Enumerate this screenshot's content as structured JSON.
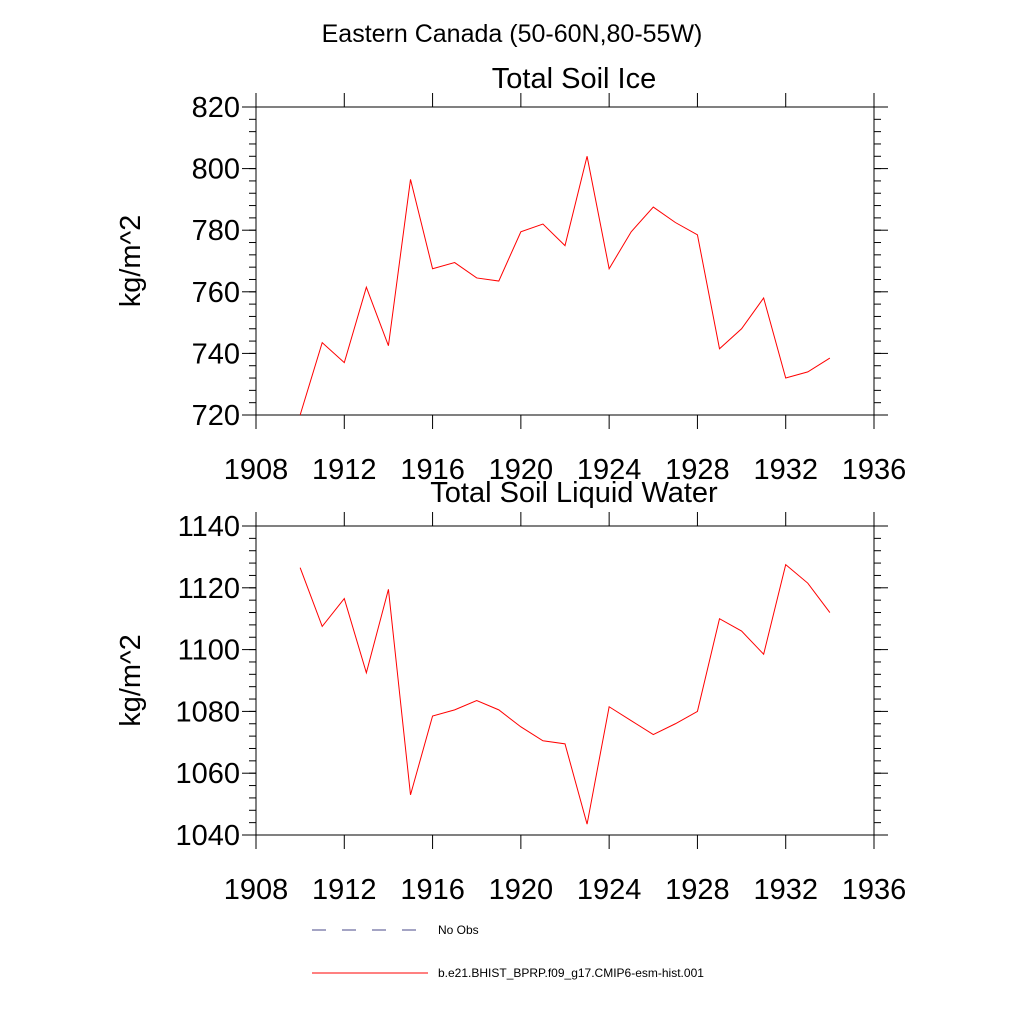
{
  "figure": {
    "title": "Eastern Canada (50-60N,80-55W)"
  },
  "legend": {
    "entries": [
      {
        "label": "No Obs",
        "style": "dashed",
        "color": "#4a4a8a"
      },
      {
        "label": "b.e21.BHIST_BPRP.f09_g17.CMIP6-esm-hist.001",
        "style": "solid",
        "color": "#ff0000"
      }
    ]
  },
  "chart_data": [
    {
      "type": "line",
      "title": "Total Soil Ice",
      "xlabel": "",
      "ylabel": "kg/m^2",
      "xlim": [
        1908,
        1936
      ],
      "ylim": [
        720,
        820
      ],
      "x_ticks": [
        1908,
        1912,
        1916,
        1920,
        1924,
        1928,
        1932,
        1936
      ],
      "y_ticks": [
        720,
        740,
        760,
        780,
        800,
        820
      ],
      "grid": false,
      "series": [
        {
          "color": "#ff0000",
          "x": [
            1910,
            1911,
            1912,
            1913,
            1914,
            1915,
            1916,
            1917,
            1918,
            1919,
            1920,
            1921,
            1922,
            1923,
            1924,
            1925,
            1926,
            1927,
            1928,
            1929,
            1930,
            1931,
            1932,
            1933,
            1934
          ],
          "values": [
            720,
            743.5,
            737,
            761.5,
            742.5,
            796.5,
            767.5,
            769.5,
            764.5,
            763.5,
            779.5,
            782,
            775,
            804,
            767.5,
            779.5,
            787.5,
            782.5,
            778.5,
            741.5,
            748,
            758,
            732,
            734,
            738.5
          ]
        }
      ]
    },
    {
      "type": "line",
      "title": "Total Soil Liquid Water",
      "xlabel": "",
      "ylabel": "kg/m^2",
      "xlim": [
        1908,
        1936
      ],
      "ylim": [
        1040,
        1140
      ],
      "x_ticks": [
        1908,
        1912,
        1916,
        1920,
        1924,
        1928,
        1932,
        1936
      ],
      "y_ticks": [
        1040,
        1060,
        1080,
        1100,
        1120,
        1140
      ],
      "grid": false,
      "series": [
        {
          "color": "#ff0000",
          "x": [
            1910,
            1911,
            1912,
            1913,
            1914,
            1915,
            1916,
            1917,
            1918,
            1919,
            1920,
            1921,
            1922,
            1923,
            1924,
            1925,
            1926,
            1927,
            1928,
            1929,
            1930,
            1931,
            1932,
            1933,
            1934
          ],
          "values": [
            1126.5,
            1107.5,
            1116.5,
            1092.5,
            1119.5,
            1053,
            1078.5,
            1080.5,
            1083.5,
            1080.5,
            1075,
            1070.5,
            1069.5,
            1043.5,
            1081.5,
            1077,
            1072.5,
            1076,
            1080,
            1110,
            1106,
            1098.5,
            1127.5,
            1121.5,
            1112
          ]
        }
      ]
    }
  ]
}
